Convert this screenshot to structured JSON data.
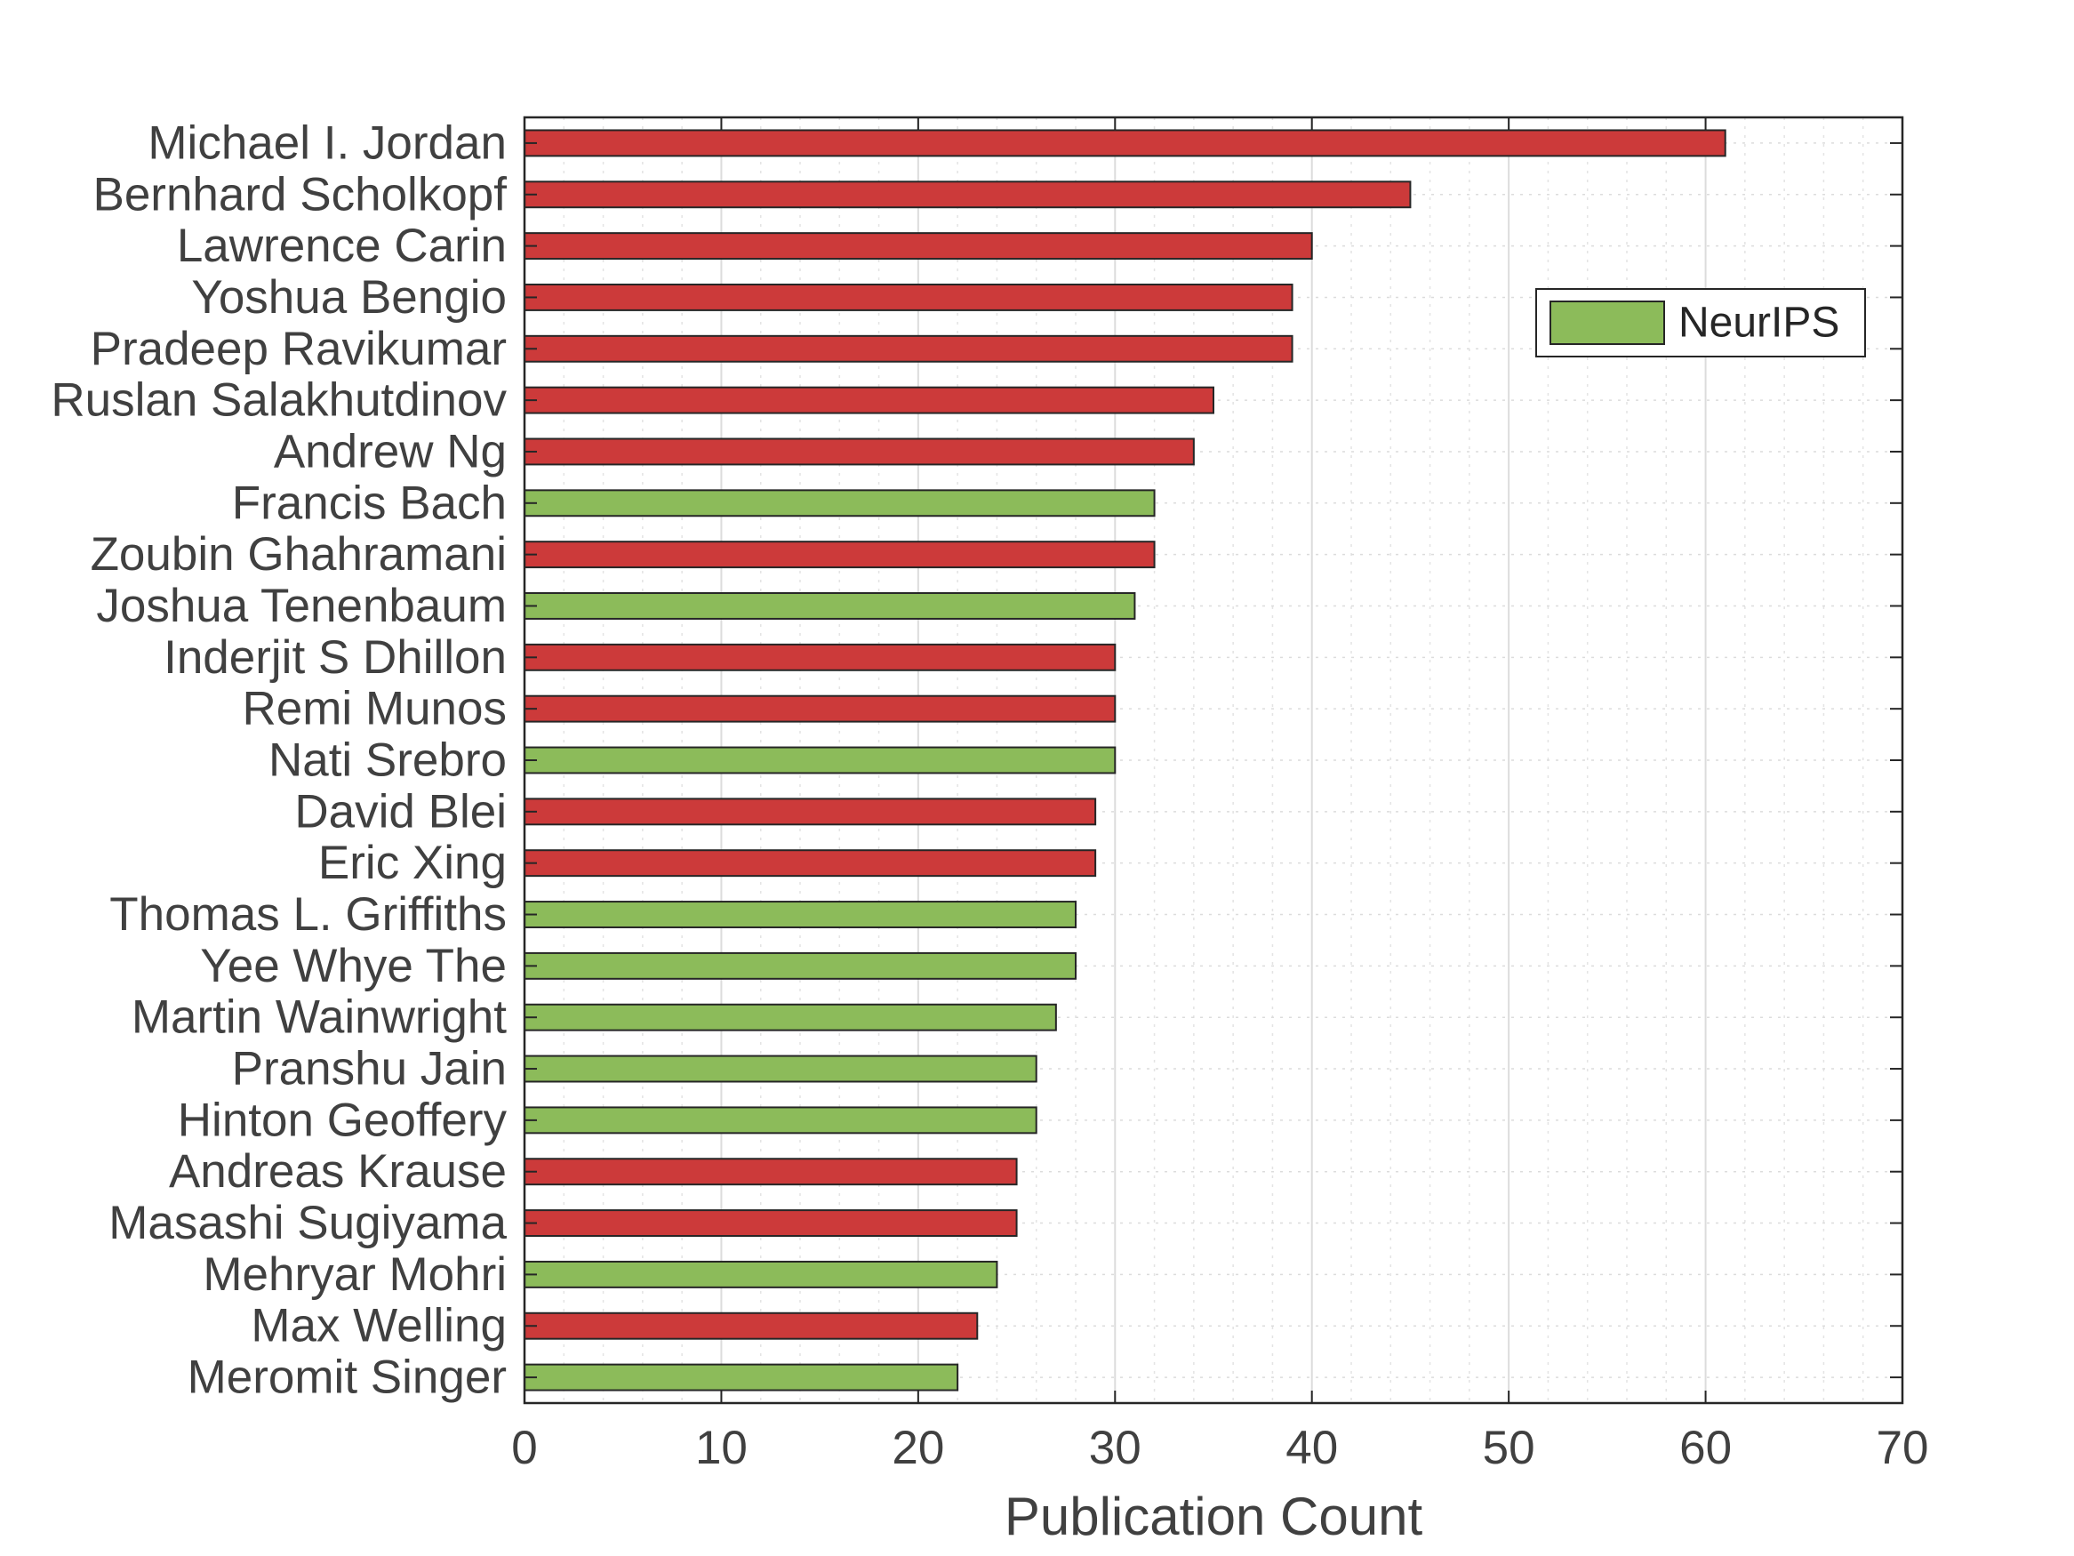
{
  "chart_data": {
    "type": "bar",
    "orientation": "horizontal",
    "title": "",
    "xlabel": "Publication Count",
    "ylabel": "",
    "xlim": [
      0,
      70
    ],
    "xticks": [
      0,
      10,
      20,
      30,
      40,
      50,
      60,
      70
    ],
    "grid": "on (dotted, major and minor)",
    "legend": {
      "placement": "top-right",
      "entries": [
        {
          "label": "NeurIPS",
          "color": "#8cbb5a"
        }
      ]
    },
    "colors": {
      "red": "#cc3a3a",
      "green": "#8cbb5a"
    },
    "categories": [
      "Michael I. Jordan",
      "Bernhard Scholkopf",
      "Lawrence Carin",
      "Yoshua Bengio",
      "Pradeep Ravikumar",
      "Ruslan Salakhutdinov",
      "Andrew Ng",
      "Francis Bach",
      "Zoubin Ghahramani",
      "Joshua Tenenbaum",
      "Inderjit S Dhillon",
      "Remi Munos",
      "Nati Srebro",
      "David Blei",
      "Eric Xing",
      "Thomas L. Griffiths",
      "Yee Whye The",
      "Martin Wainwright",
      "Pranshu Jain",
      "Hinton Geoffery",
      "Andreas Krause",
      "Masashi Sugiyama",
      "Mehryar Mohri",
      "Max Welling",
      "Meromit Singer"
    ],
    "values": [
      61,
      45,
      40,
      39,
      39,
      35,
      34,
      32,
      32,
      31,
      30,
      30,
      30,
      29,
      29,
      28,
      28,
      27,
      26,
      26,
      25,
      25,
      24,
      23,
      22
    ],
    "bar_colors": [
      "red",
      "red",
      "red",
      "red",
      "red",
      "red",
      "red",
      "green",
      "red",
      "green",
      "red",
      "red",
      "green",
      "red",
      "red",
      "green",
      "green",
      "green",
      "green",
      "green",
      "red",
      "red",
      "green",
      "red",
      "green"
    ]
  }
}
